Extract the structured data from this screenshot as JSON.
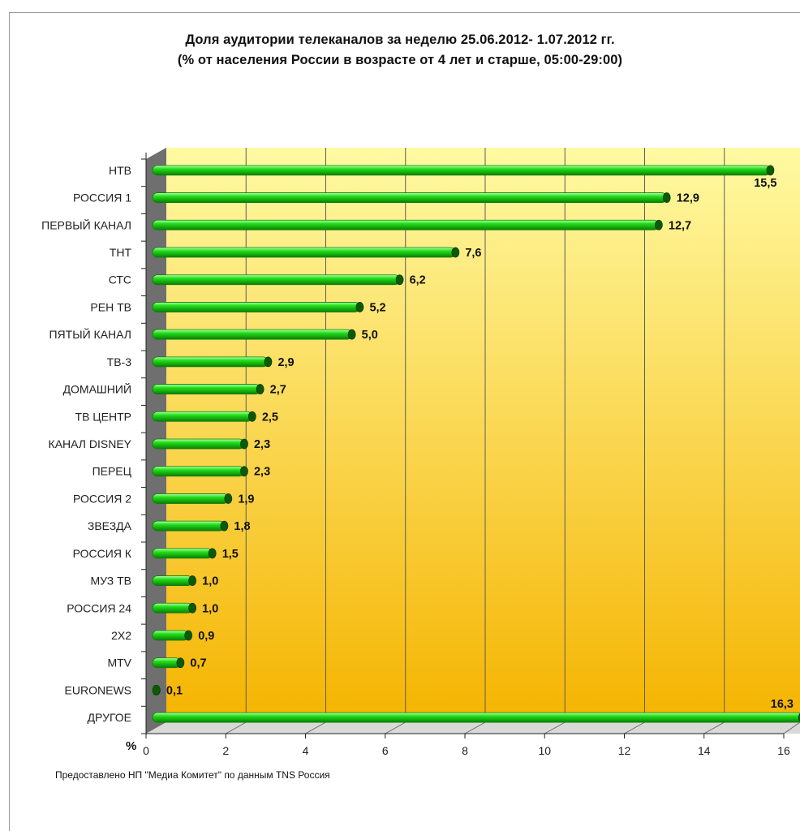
{
  "title_line1": "Доля аудитории телеканалов за неделю 25.06.2012- 1.07.2012 гг.",
  "title_line2": "(% от населения России в возрасте от 4 лет и старше, 05:00-29:00)",
  "source_note": "Предоставлено НП \"Медиа Комитет\" по данным TNS Россия",
  "colors": {
    "bar_main": "#22e01a",
    "bar_dark": "#0a7d05",
    "bar_cap": "#0c5a08",
    "plot_top": "#fffaa3",
    "plot_bottom": "#f5b400",
    "wall": "#6f6f6f"
  },
  "chart_data": {
    "type": "bar",
    "orientation": "horizontal",
    "title": "Доля аудитории телеканалов за неделю 25.06.2012- 1.07.2012 гг.",
    "subtitle": "(% от населения России в возрасте от 4 лет и старше, 05:00-29:00)",
    "xlabel": "%",
    "ylabel": "",
    "xlim": [
      0,
      16
    ],
    "xticks": [
      0,
      2,
      4,
      6,
      8,
      10,
      12,
      14,
      16
    ],
    "grid": true,
    "legend": "none",
    "categories": [
      "НТВ",
      "РОССИЯ 1",
      "ПЕРВЫЙ КАНАЛ",
      "ТНТ",
      "СТС",
      "РЕН ТВ",
      "ПЯТЫЙ КАНАЛ",
      "ТВ-3",
      "ДОМАШНИЙ",
      "ТВ ЦЕНТР",
      "КАНАЛ DISNEY",
      "ПЕРЕЦ",
      "РОССИЯ 2",
      "ЗВЕЗДА",
      "РОССИЯ К",
      "МУЗ ТВ",
      "РОССИЯ 24",
      "2Х2",
      "MTV",
      "EURONEWS",
      "ДРУГОЕ"
    ],
    "values": [
      15.5,
      12.9,
      12.7,
      7.6,
      6.2,
      5.2,
      5.0,
      2.9,
      2.7,
      2.5,
      2.3,
      2.3,
      1.9,
      1.8,
      1.5,
      1.0,
      1.0,
      0.9,
      0.7,
      0.1,
      16.3
    ],
    "value_labels": [
      "15,5",
      "12,9",
      "12,7",
      "7,6",
      "6,2",
      "5,2",
      "5,0",
      "2,9",
      "2,7",
      "2,5",
      "2,3",
      "2,3",
      "1,9",
      "1,8",
      "1,5",
      "1,0",
      "1,0",
      "0,9",
      "0,7",
      "0,1",
      "16,3"
    ]
  }
}
